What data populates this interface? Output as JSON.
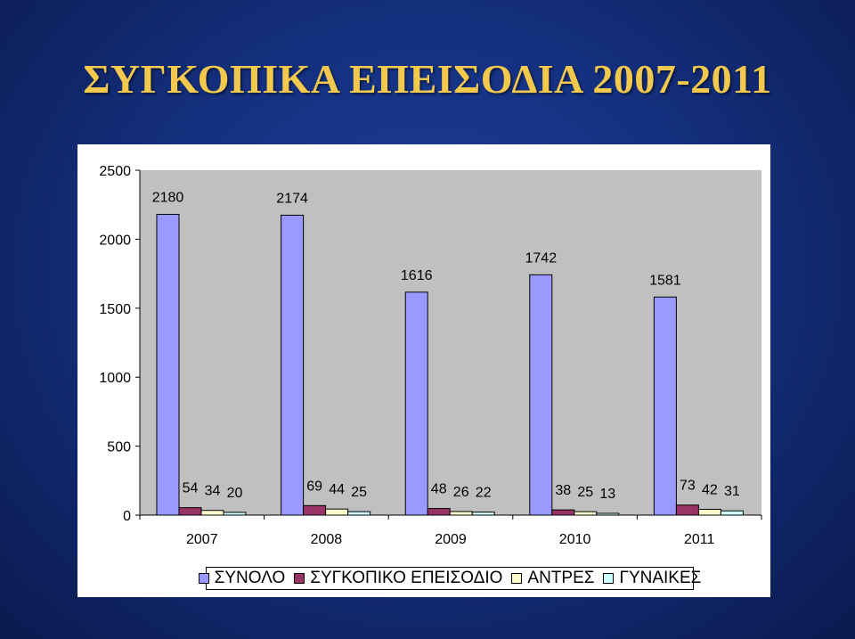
{
  "slide": {
    "title": "ΣΥΓΚΟΠΙΚΑ ΕΠΕΙΣΟΔΙΑ 2007-2011"
  },
  "chart_data": {
    "type": "bar",
    "title": "",
    "xlabel": "",
    "ylabel": "",
    "categories": [
      "2007",
      "2008",
      "2009",
      "2010",
      "2011"
    ],
    "ylim": [
      0,
      2500
    ],
    "yticks": [
      0,
      500,
      1000,
      1500,
      2000,
      2500
    ],
    "grid": false,
    "legend_position": "bottom",
    "series": [
      {
        "name": "ΣΥΝΟΛΟ",
        "values": [
          2180,
          2174,
          1616,
          1742,
          1581
        ],
        "color": "#9999ff"
      },
      {
        "name": "ΣΥΓΚΟΠΙΚΟ ΕΠΕΙΣΟΔΙΟ",
        "values": [
          54,
          69,
          48,
          38,
          73
        ],
        "color": "#993366"
      },
      {
        "name": "ΑΝΤΡΕΣ",
        "values": [
          34,
          44,
          26,
          25,
          42
        ],
        "color": "#ffffcc"
      },
      {
        "name": "ΓΥΝΑΙΚΕΣ",
        "values": [
          20,
          25,
          22,
          13,
          31
        ],
        "color": "#ccffff"
      }
    ]
  },
  "style": {
    "plot_background": "#c0c0c0",
    "title_color": "#f2c94c"
  }
}
